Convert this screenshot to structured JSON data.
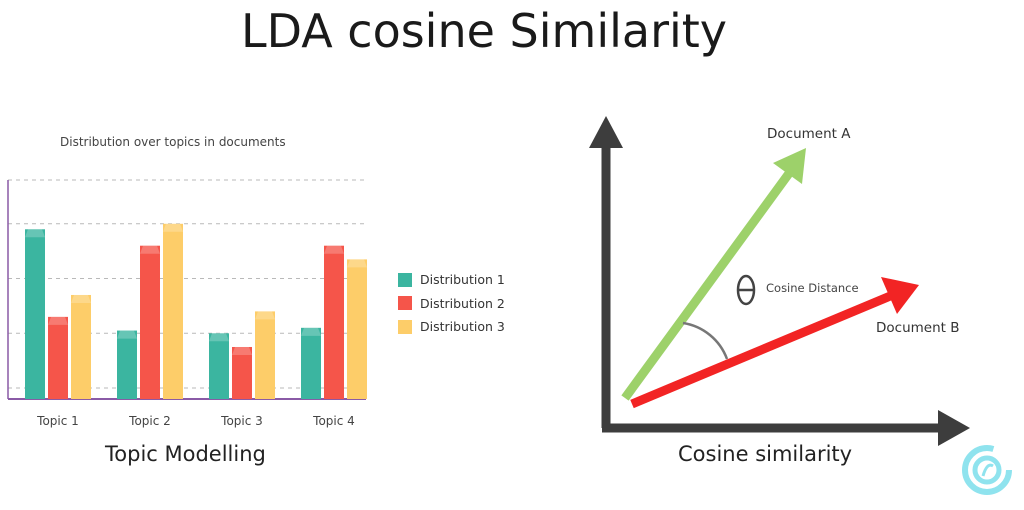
{
  "title": "LDA cosine Similarity",
  "topic_modelling": {
    "caption": "Topic Modelling",
    "chart_data": {
      "type": "bar",
      "title": "Distribution over topics in documents",
      "categories": [
        "Topic 1",
        "Topic 2",
        "Topic 3",
        "Topic 4"
      ],
      "series": [
        {
          "name": "Distribution 1",
          "color": "#3bb5a0",
          "values": [
            31,
            12.5,
            12,
            13
          ]
        },
        {
          "name": "Distribution 2",
          "color": "#f5554a",
          "values": [
            15,
            28,
            9.5,
            28
          ]
        },
        {
          "name": "Distribution 3",
          "color": "#fdcd69",
          "values": [
            19,
            32,
            16,
            25.5
          ]
        }
      ],
      "ylim": [
        0,
        40
      ],
      "grid": true,
      "legend_position": "right"
    }
  },
  "cosine_similarity": {
    "caption": "Cosine similarity",
    "vectors": {
      "document_a": {
        "label": "Document A",
        "color": "#9dd16a"
      },
      "document_b": {
        "label": "Document B",
        "color": "#f22424"
      }
    },
    "angle": {
      "symbol": "θ",
      "label": "Cosine Distance"
    },
    "axis_color": "#3d3d3d"
  },
  "logo": {
    "name": "brand-logo"
  }
}
